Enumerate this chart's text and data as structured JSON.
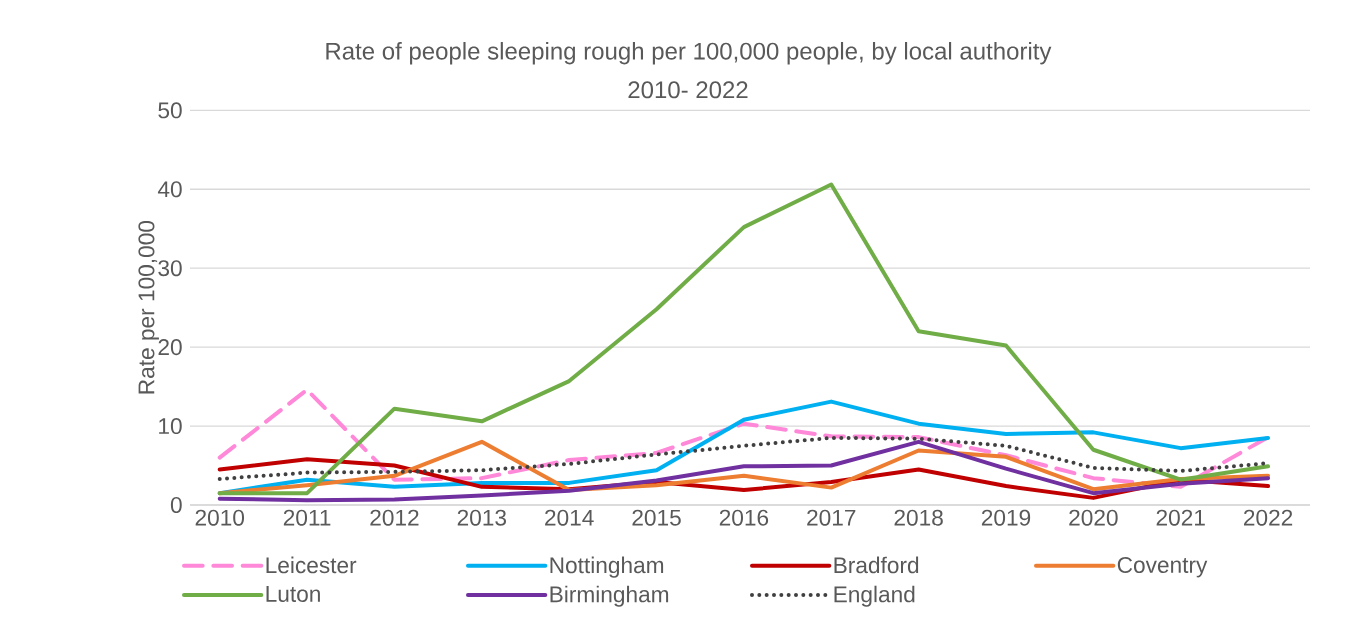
{
  "chart_data": {
    "type": "line",
    "title": "Rate of people sleeping rough per 100,000 people, by local authority",
    "subtitle": "2010- 2022",
    "ylabel": "Rate per 100,000",
    "categories": [
      "2010",
      "2011",
      "2012",
      "2013",
      "2014",
      "2015",
      "2016",
      "2017",
      "2018",
      "2019",
      "2020",
      "2021",
      "2022"
    ],
    "ylim": [
      0,
      50
    ],
    "yticks": [
      0,
      10,
      20,
      30,
      40,
      50
    ],
    "grid": "y",
    "legend": "bottom",
    "series": [
      {
        "name": "Leicester",
        "color": "#ff88d8",
        "line_style": "dashed",
        "values": [
          6.0,
          14.6,
          3.2,
          3.4,
          5.7,
          6.6,
          10.3,
          8.7,
          8.6,
          6.3,
          3.4,
          2.3,
          8.6
        ]
      },
      {
        "name": "Nottingham",
        "color": "#00b0f0",
        "values": [
          1.5,
          3.2,
          2.3,
          2.8,
          2.8,
          4.4,
          10.8,
          13.1,
          10.3,
          9.0,
          9.2,
          7.2,
          8.5
        ]
      },
      {
        "name": "Bradford",
        "color": "#c00000",
        "values": [
          4.5,
          5.8,
          5.0,
          2.3,
          2.0,
          2.9,
          1.9,
          2.9,
          4.5,
          2.4,
          0.9,
          3.2,
          2.4
        ]
      },
      {
        "name": "Coventry",
        "color": "#ed7d31",
        "values": [
          1.5,
          2.5,
          3.7,
          8.0,
          1.9,
          2.5,
          3.7,
          2.2,
          6.9,
          6.1,
          2.0,
          3.3,
          3.7
        ]
      },
      {
        "name": "Luton",
        "color": "#70ad47",
        "values": [
          1.5,
          1.5,
          12.2,
          10.6,
          15.7,
          24.8,
          35.2,
          40.6,
          22.0,
          20.2,
          7.0,
          3.2,
          4.9
        ]
      },
      {
        "name": "Birmingham",
        "color": "#7030a0",
        "values": [
          0.8,
          0.6,
          0.7,
          1.2,
          1.8,
          3.1,
          4.9,
          5.0,
          8.0,
          4.6,
          1.5,
          2.7,
          3.4
        ]
      },
      {
        "name": "England",
        "color": "#404040",
        "line_style": "dotted",
        "values": [
          3.3,
          4.1,
          4.2,
          4.4,
          5.2,
          6.4,
          7.5,
          8.5,
          8.4,
          7.5,
          4.7,
          4.3,
          5.3
        ]
      }
    ]
  }
}
